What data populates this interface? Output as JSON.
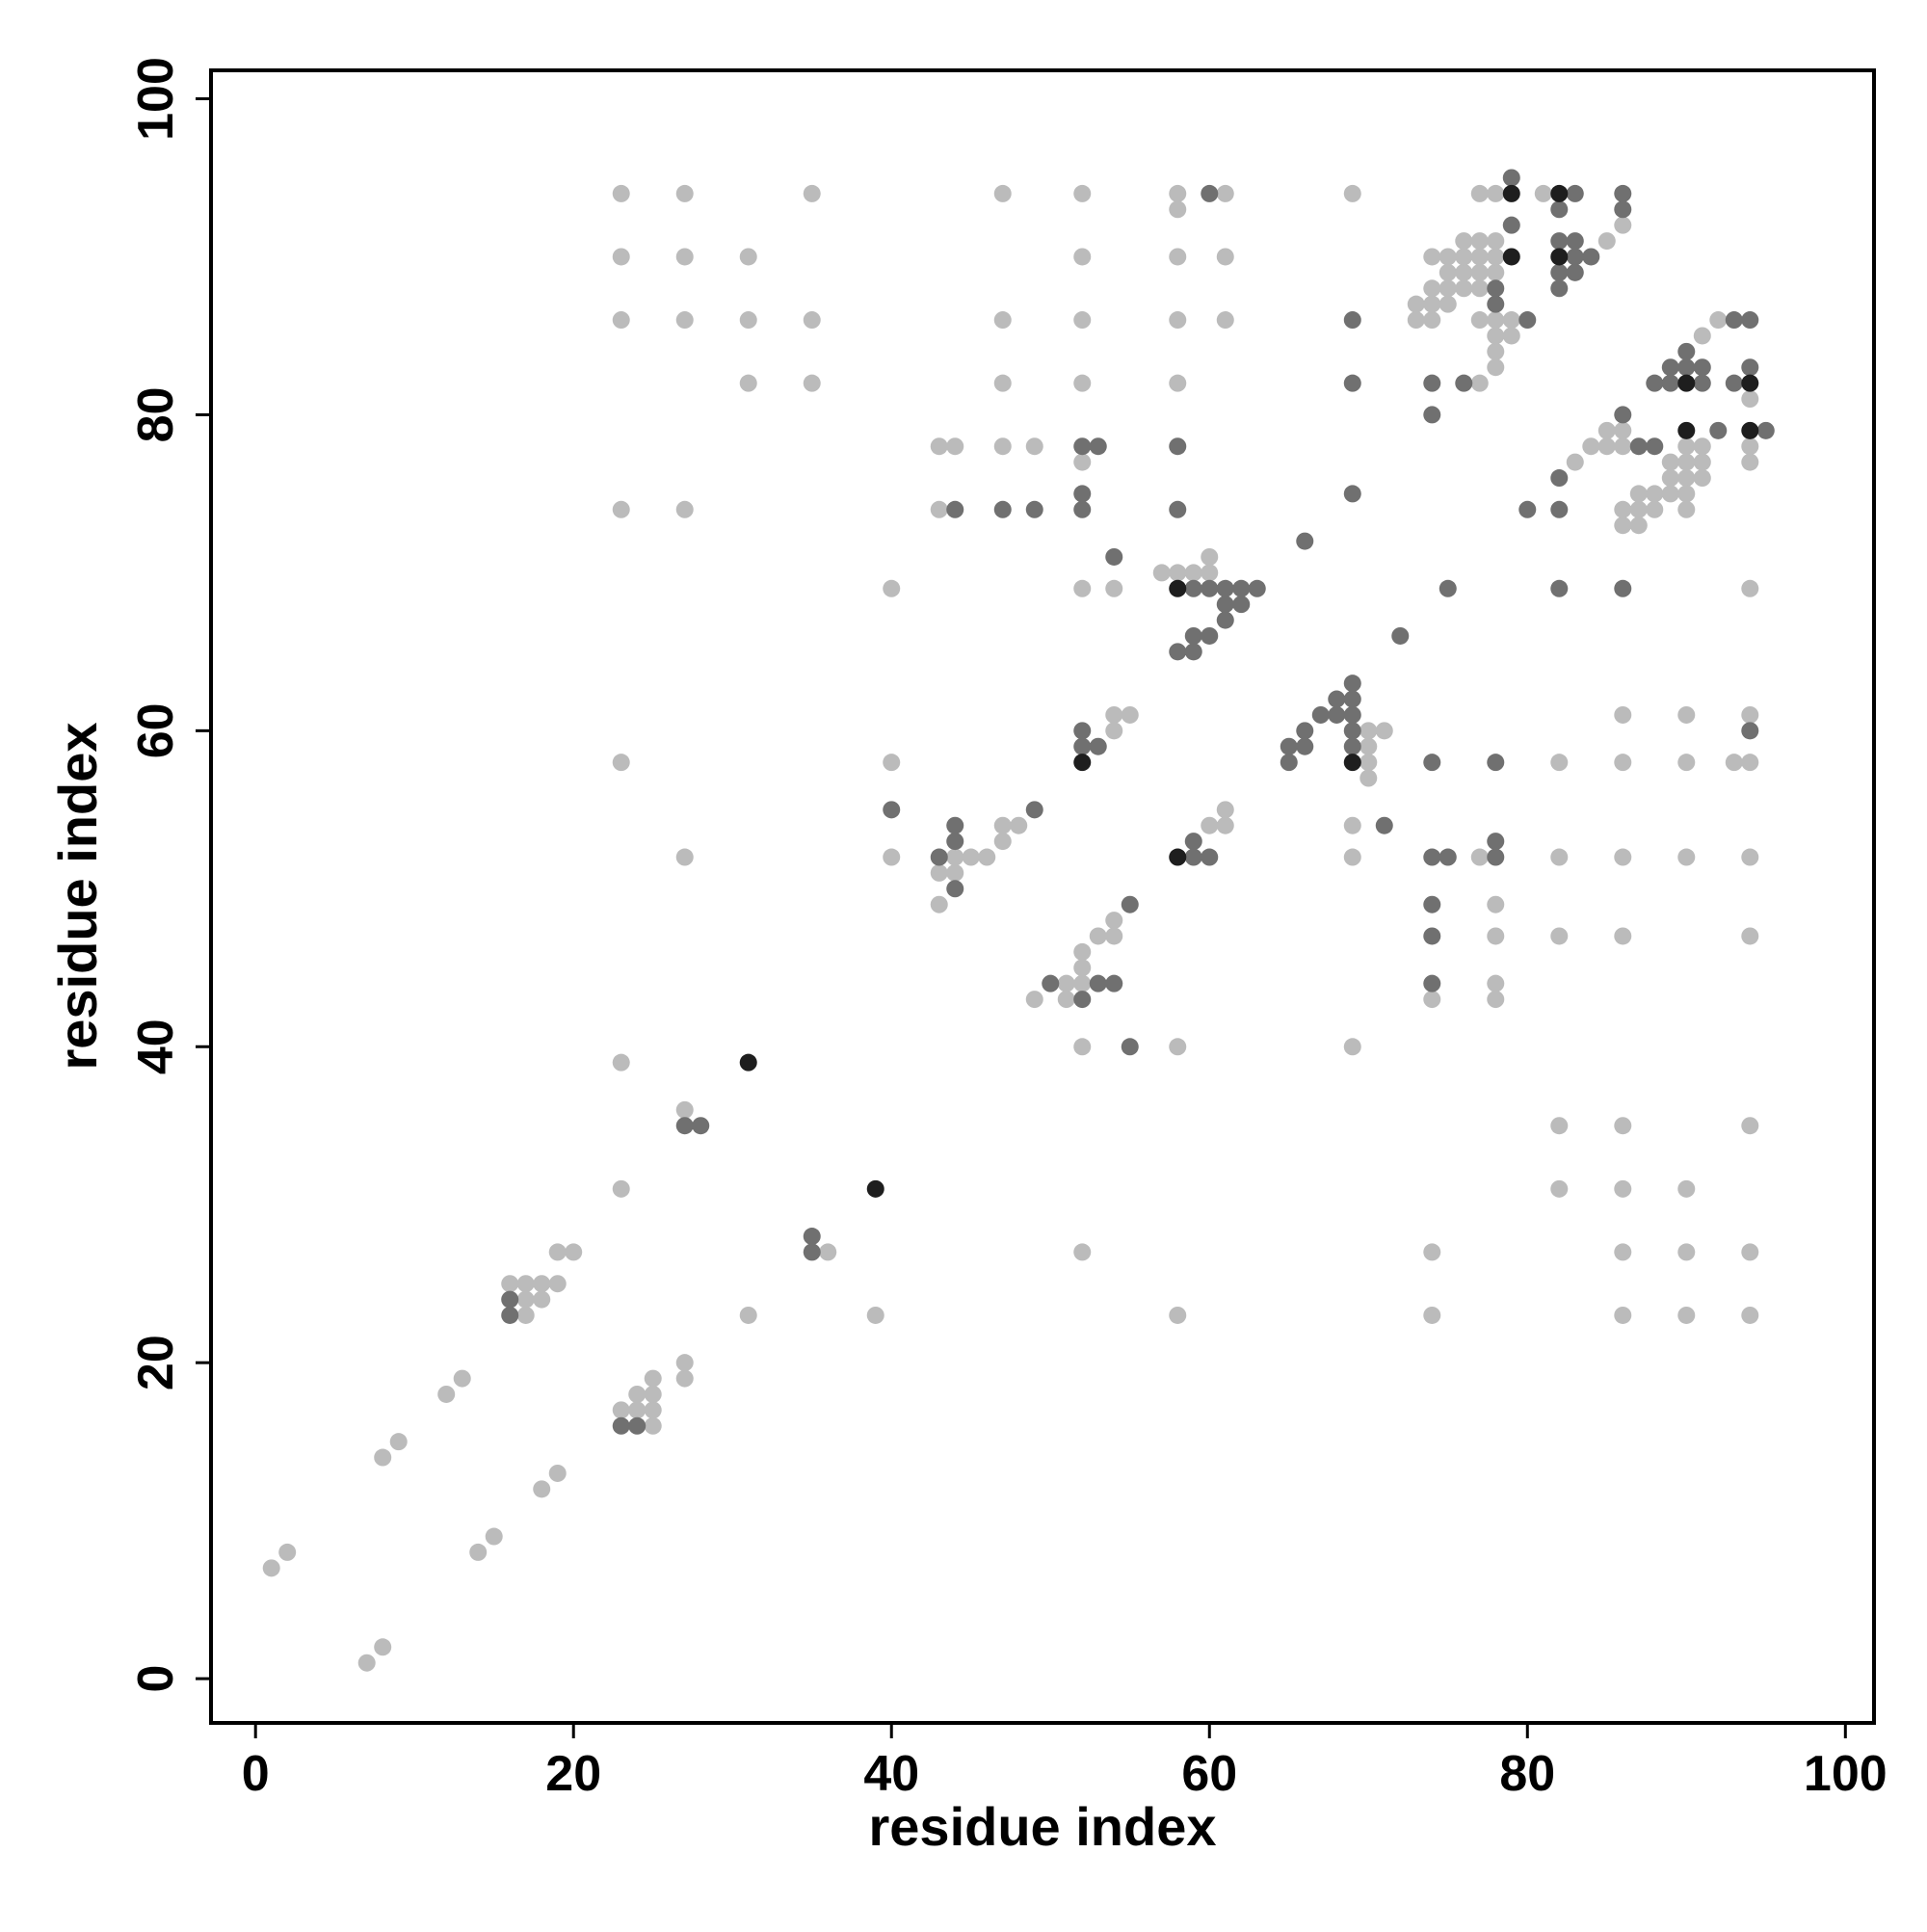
{
  "chart_data": {
    "type": "scatter",
    "xlabel": "residue index",
    "ylabel": "residue index",
    "xlim": [
      -2.8,
      101.8
    ],
    "ylim": [
      -2.8,
      101.8
    ],
    "xticks": [
      0,
      20,
      40,
      60,
      80,
      100
    ],
    "yticks": [
      0,
      20,
      40,
      60,
      80,
      100
    ],
    "series": [
      {
        "color": "#bbbbbb",
        "x": [
          1,
          2,
          7,
          8,
          8,
          9,
          12,
          13,
          14,
          15,
          18,
          19,
          16,
          17,
          18,
          19,
          19,
          20,
          17,
          18,
          17,
          23,
          24,
          25,
          24,
          25,
          25,
          25,
          27,
          27,
          27,
          23,
          23,
          36,
          31,
          39,
          23,
          27,
          23,
          27,
          23,
          27,
          35,
          47,
          52,
          58,
          61,
          69,
          58,
          23,
          27,
          31,
          52,
          58,
          61,
          23,
          27,
          31,
          35,
          47,
          52,
          58,
          61,
          31,
          35,
          47,
          52,
          58,
          43,
          44,
          47,
          49,
          52,
          43,
          40,
          52,
          54,
          57,
          58,
          59,
          60,
          60,
          54,
          55,
          54,
          40,
          47,
          48,
          47,
          40,
          44,
          45,
          46,
          43,
          44,
          43,
          54,
          53,
          54,
          52,
          52,
          51,
          52,
          49,
          51,
          52,
          58,
          69,
          61,
          60,
          61,
          69,
          69,
          70,
          71,
          70,
          70,
          70,
          82,
          86,
          90,
          93,
          94,
          86,
          90,
          94,
          77,
          82,
          86,
          90,
          94,
          78,
          78,
          82,
          86,
          94,
          78,
          74,
          78,
          82,
          86,
          94,
          82,
          86,
          90,
          52,
          74,
          86,
          90,
          94,
          58,
          74,
          86,
          90,
          94,
          77,
          78,
          78,
          78,
          79,
          77,
          78,
          79,
          73,
          74,
          75,
          73,
          74,
          74,
          75,
          76,
          77,
          75,
          76,
          77,
          78,
          74,
          75,
          76,
          77,
          78,
          76,
          77,
          78,
          77,
          78,
          81,
          85,
          86,
          91,
          92,
          94,
          94,
          94,
          85,
          86,
          84,
          85,
          86,
          83,
          89,
          90,
          91,
          89,
          90,
          91,
          90,
          91,
          87,
          88,
          89,
          90,
          86,
          87,
          88,
          90,
          86,
          87,
          94
        ],
        "y": [
          7,
          8,
          1,
          2,
          14,
          15,
          18,
          19,
          8,
          9,
          12,
          13,
          25,
          25,
          25,
          25,
          27,
          27,
          24,
          24,
          23,
          17,
          17,
          17,
          18,
          18,
          19,
          16,
          19,
          20,
          36,
          39,
          31,
          27,
          23,
          23,
          58,
          52,
          74,
          74,
          94,
          94,
          94,
          94,
          94,
          94,
          94,
          94,
          93,
          90,
          90,
          90,
          90,
          90,
          90,
          86,
          86,
          86,
          86,
          86,
          86,
          86,
          86,
          82,
          82,
          82,
          82,
          82,
          78,
          78,
          78,
          78,
          77,
          74,
          69,
          69,
          69,
          70,
          70,
          70,
          70,
          71,
          61,
          61,
          60,
          58,
          54,
          54,
          53,
          52,
          52,
          52,
          52,
          51,
          51,
          49,
          48,
          47,
          47,
          46,
          45,
          44,
          44,
          43,
          43,
          40,
          40,
          40,
          55,
          54,
          54,
          54,
          52,
          60,
          60,
          59,
          58,
          57,
          58,
          58,
          58,
          58,
          58,
          61,
          61,
          61,
          52,
          52,
          52,
          52,
          52,
          49,
          47,
          47,
          47,
          47,
          44,
          43,
          43,
          35,
          35,
          35,
          31,
          31,
          31,
          27,
          27,
          27,
          27,
          27,
          23,
          23,
          23,
          23,
          23,
          82,
          83,
          84,
          85,
          85,
          86,
          86,
          86,
          87,
          87,
          87,
          86,
          86,
          88,
          88,
          88,
          88,
          89,
          89,
          89,
          89,
          90,
          90,
          90,
          90,
          90,
          91,
          91,
          91,
          94,
          94,
          94,
          91,
          92,
          85,
          86,
          81,
          78,
          77,
          79,
          79,
          78,
          78,
          78,
          77,
          76,
          76,
          76,
          77,
          77,
          77,
          78,
          78,
          75,
          75,
          75,
          75,
          74,
          74,
          74,
          74,
          73,
          73,
          69
        ]
      },
      {
        "color": "#707070",
        "x": [
          16,
          16,
          23,
          24,
          27,
          28,
          35,
          35,
          60,
          69,
          69,
          52,
          53,
          58,
          52,
          69,
          44,
          47,
          49,
          52,
          58,
          54,
          59,
          60,
          61,
          62,
          63,
          75,
          61,
          62,
          61,
          59,
          60,
          58,
          59,
          66,
          72,
          52,
          52,
          53,
          40,
          49,
          44,
          44,
          43,
          44,
          55,
          50,
          53,
          54,
          52,
          55,
          59,
          59,
          60,
          71,
          65,
          66,
          65,
          66,
          67,
          68,
          68,
          69,
          69,
          69,
          69,
          69,
          74,
          78,
          94,
          74,
          75,
          78,
          78,
          74,
          74,
          74,
          74,
          74,
          76,
          80,
          78,
          78,
          79,
          79,
          83,
          82,
          82,
          83,
          83,
          84,
          82,
          83,
          82,
          86,
          86,
          88,
          89,
          91,
          89,
          90,
          91,
          94,
          90,
          93,
          94,
          93,
          92,
          95,
          86,
          87,
          88,
          82,
          80,
          82,
          82,
          86
        ],
        "y": [
          24,
          23,
          16,
          16,
          35,
          35,
          28,
          27,
          94,
          86,
          82,
          78,
          78,
          78,
          75,
          75,
          74,
          74,
          74,
          74,
          74,
          71,
          69,
          69,
          69,
          69,
          69,
          69,
          68,
          68,
          67,
          66,
          66,
          65,
          65,
          72,
          66,
          60,
          59,
          59,
          55,
          55,
          54,
          53,
          52,
          50,
          49,
          44,
          44,
          44,
          43,
          40,
          53,
          52,
          52,
          54,
          59,
          59,
          58,
          60,
          61,
          61,
          62,
          62,
          63,
          61,
          60,
          59,
          58,
          58,
          60,
          52,
          52,
          52,
          53,
          49,
          47,
          44,
          80,
          82,
          82,
          86,
          87,
          88,
          92,
          95,
          94,
          93,
          91,
          91,
          90,
          90,
          89,
          89,
          88,
          93,
          94,
          82,
          82,
          82,
          83,
          83,
          83,
          83,
          84,
          86,
          86,
          82,
          79,
          79,
          80,
          78,
          78,
          76,
          74,
          74,
          69,
          69
        ]
      },
      {
        "color": "#1e1e1e",
        "x": [
          31,
          39,
          58,
          52,
          58,
          69,
          79,
          79,
          82,
          82,
          90,
          94,
          90,
          94
        ],
        "y": [
          39,
          31,
          69,
          58,
          52,
          58,
          90,
          94,
          94,
          90,
          82,
          82,
          79,
          79
        ]
      }
    ]
  }
}
